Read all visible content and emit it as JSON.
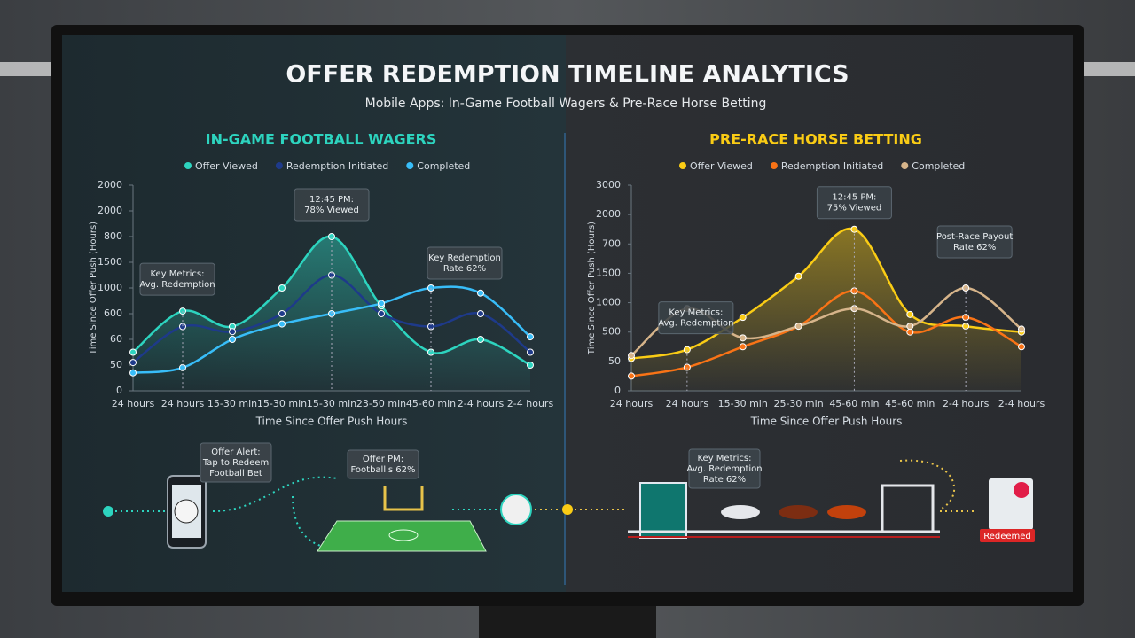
{
  "title": "OFFER REDEMPTION TIMELINE ANALYTICS",
  "subtitle": "Mobile Apps: In-Game Football Wagers & Pre-Race Horse Betting",
  "chart_data": [
    {
      "type": "line",
      "title": "IN-GAME FOOTBALL WAGERS",
      "x_label": "Time Since Offer Push Hours",
      "y_label": "Time Since Offer Push (Hours)",
      "categories": [
        "24 hours",
        "24 hours",
        "15-30 min",
        "15-30 min",
        "15-30 min",
        "23-50 min",
        "45-60 min",
        "2-4 hours",
        "2-4 hours"
      ],
      "ylim": [
        0,
        8
      ],
      "yticks": [
        0,
        {
          "value": 1,
          "label": "50"
        },
        {
          "value": 2,
          "label": "60"
        },
        {
          "value": 3,
          "label": "600"
        },
        {
          "value": 4,
          "label": "1000"
        },
        {
          "value": 5,
          "label": "1500"
        },
        {
          "value": 6,
          "label": "800"
        },
        {
          "value": 7,
          "label": "2000"
        },
        {
          "value": 8,
          "label": "2000"
        }
      ],
      "series": [
        {
          "name": "Offer Viewed",
          "color": "#2dd4bf",
          "values": [
            1.5,
            3.1,
            2.5,
            4.0,
            6.0,
            3.3,
            1.5,
            2.0,
            1.0
          ]
        },
        {
          "name": "Redemption Initiated",
          "color": "#1e3a8a",
          "values": [
            1.1,
            2.5,
            2.3,
            3.0,
            4.5,
            3.0,
            2.5,
            3.0,
            1.5
          ]
        },
        {
          "name": "Completed",
          "color": "#38bdf8",
          "values": [
            0.7,
            0.9,
            2.0,
            2.6,
            3.0,
            3.4,
            4.0,
            3.8,
            2.1
          ]
        }
      ],
      "annotations": [
        {
          "lines": [
            "12:45 PM:",
            "78% Viewed"
          ]
        },
        {
          "lines": [
            "Key Metrics:",
            "Avg. Redemption"
          ]
        },
        {
          "lines": [
            "Key Redemption",
            "Rate 62%"
          ]
        }
      ]
    },
    {
      "type": "line",
      "title": "PRE-RACE HORSE BETTING",
      "x_label": "Time Since Offer Push Hours",
      "y_label": "Time Since Offer Push (Hours)",
      "categories": [
        "24 hours",
        "24 hours",
        "15-30 min",
        "25-30 min",
        "45-60 min",
        "45-60 min",
        "2-4 hours",
        "2-4 hours"
      ],
      "ylim": [
        0,
        7
      ],
      "yticks": [
        0,
        {
          "value": 1,
          "label": "50"
        },
        {
          "value": 2,
          "label": "500"
        },
        {
          "value": 3,
          "label": "1000"
        },
        {
          "value": 4,
          "label": "1500"
        },
        {
          "value": 5,
          "label": "700"
        },
        {
          "value": 6,
          "label": "2000"
        },
        {
          "value": 7,
          "label": "3000"
        }
      ],
      "series": [
        {
          "name": "Offer Viewed",
          "color": "#facc15",
          "values": [
            1.1,
            1.4,
            2.5,
            3.9,
            5.5,
            2.6,
            2.2,
            2.0
          ]
        },
        {
          "name": "Redemption Initiated",
          "color": "#f97316",
          "values": [
            0.5,
            0.8,
            1.5,
            2.2,
            3.4,
            2.0,
            2.5,
            1.5
          ]
        },
        {
          "name": "Completed",
          "color": "#d6b48a",
          "values": [
            1.2,
            2.8,
            1.8,
            2.2,
            2.8,
            2.2,
            3.5,
            2.1
          ]
        }
      ],
      "annotations": [
        {
          "lines": [
            "12:45 PM:",
            "75% Viewed"
          ]
        },
        {
          "lines": [
            "Key Metrics:",
            "Avg. Redemption"
          ]
        },
        {
          "lines": [
            "Post-Race Payout",
            "Rate 62%"
          ]
        }
      ]
    }
  ],
  "flow": {
    "phone_alert": [
      "Offer Alert:",
      "Tap to Redeem",
      "Football Bet"
    ],
    "field_note": [
      "Offer PM:",
      "Football's 62%"
    ],
    "race_note": [
      "Key Metrics:",
      "Avg. Redemption",
      "Rate 62%"
    ],
    "redeemed": "Redeemed"
  }
}
